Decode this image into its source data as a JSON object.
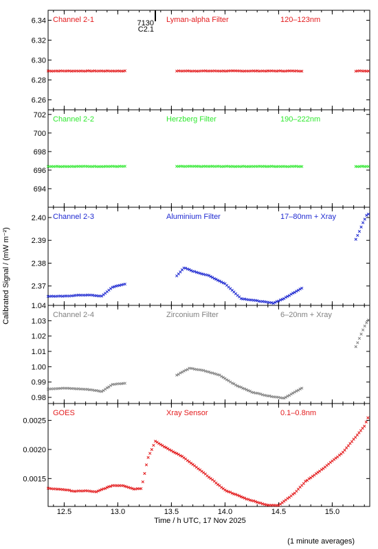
{
  "chart_data": {
    "type": "scatter",
    "xlabel": "Time / h UTC, 17 Nov 2025",
    "ylabel": "Calibrated Signal / (mW m⁻²)",
    "footnote": "(1 minute averages)",
    "xlim": [
      12.35,
      15.35
    ],
    "xticks": [
      "12.5",
      "13.0",
      "13.5",
      "14.0",
      "14.5",
      "15.0"
    ],
    "event_marker": {
      "x": 13.35,
      "labels": [
        "7130",
        "C2.1"
      ]
    },
    "panels": [
      {
        "name": "Channel 2-1",
        "filter": "Lyman-alpha Filter",
        "band": "120–123nm",
        "color": "#e31a1c",
        "ylim": [
          6.25,
          6.35
        ],
        "yticks": [
          "6.26",
          "6.28",
          "6.30",
          "6.32",
          "6.34"
        ],
        "segments": [
          {
            "x": [
              12.35,
              13.08
            ],
            "y": [
              6.289,
              6.289
            ]
          },
          {
            "x": [
              13.55,
              14.73
            ],
            "y": [
              6.289,
              6.289
            ]
          },
          {
            "x": [
              15.22,
              15.35
            ],
            "y": [
              6.289,
              6.289
            ]
          }
        ]
      },
      {
        "name": "Channel 2-2",
        "filter": "Herzberg Filter",
        "band": "190–222nm",
        "color": "#2ee82e",
        "ylim": [
          692.0,
          702.5
        ],
        "yticks": [
          "694",
          "696",
          "698",
          "700",
          "702"
        ],
        "segments": [
          {
            "x": [
              12.35,
              13.08
            ],
            "y": [
              696.4,
              696.4
            ]
          },
          {
            "x": [
              13.55,
              14.73
            ],
            "y": [
              696.4,
              696.4
            ]
          },
          {
            "x": [
              15.22,
              15.35
            ],
            "y": [
              696.4,
              696.4
            ]
          }
        ]
      },
      {
        "name": "Channel 2-3",
        "filter": "Aluminium Filter",
        "band": "17–80nm + Xray",
        "color": "#1f2ad1",
        "ylim": [
          2.3615,
          2.4045
        ],
        "yticks": [
          "2.37",
          "2.38",
          "2.39",
          "2.40"
        ],
        "segments": [
          {
            "x": [
              12.35,
              12.5,
              12.65,
              12.75,
              12.85,
              12.95,
              13.08
            ],
            "y": [
              2.3655,
              2.3655,
              2.366,
              2.366,
              2.3655,
              2.3695,
              2.371
            ]
          },
          {
            "x": [
              13.55,
              13.62,
              13.7,
              13.85,
              14.0,
              14.15,
              14.3,
              14.45,
              14.55,
              14.73
            ],
            "y": [
              2.3745,
              2.378,
              2.3765,
              2.3745,
              2.371,
              2.3645,
              2.3635,
              2.3625,
              2.3645,
              2.3695
            ]
          },
          {
            "x": [
              15.22,
              15.25,
              15.28,
              15.3,
              15.32,
              15.35
            ],
            "y": [
              2.3905,
              2.3935,
              2.397,
              2.399,
              2.401,
              2.402
            ]
          }
        ]
      },
      {
        "name": "Channel 2-4",
        "filter": "Zirconium Filter",
        "band": "6–20nm + Xray",
        "color": "#808080",
        "ylim": [
          0.976,
          1.04
        ],
        "yticks": [
          "0.98",
          "0.99",
          "1.00",
          "1.01",
          "1.02",
          "1.03",
          "1.04"
        ],
        "segments": [
          {
            "x": [
              12.35,
              12.5,
              12.65,
              12.75,
              12.85,
              12.95,
              13.08
            ],
            "y": [
              0.9855,
              0.986,
              0.9855,
              0.985,
              0.9838,
              0.9885,
              0.9893
            ]
          },
          {
            "x": [
              13.55,
              13.6,
              13.67,
              13.8,
              13.95,
              14.1,
              14.25,
              14.4,
              14.55,
              14.73
            ],
            "y": [
              0.9945,
              0.9965,
              0.999,
              0.9975,
              0.9945,
              0.988,
              0.9835,
              0.981,
              0.9795,
              0.9865
            ]
          },
          {
            "x": [
              15.22,
              15.25,
              15.28,
              15.3,
              15.33,
              15.35
            ],
            "y": [
              1.013,
              1.018,
              1.023,
              1.026,
              1.03,
              1.031
            ]
          }
        ]
      },
      {
        "name": "GOES",
        "filter": "Xray Sensor",
        "band": "0.1–0.8nm",
        "color": "#e31a1c",
        "ylim": [
          0.00102,
          0.00279
        ],
        "yticks": [
          "0.0015",
          "0.0020",
          "0.0025"
        ],
        "segments": [
          {
            "x": [
              12.35,
              12.5,
              12.6,
              12.7,
              12.8,
              12.85,
              12.95,
              13.05,
              13.15,
              13.22,
              13.28,
              13.35,
              13.45,
              13.6,
              13.8,
              14.0,
              14.2,
              14.4,
              14.5,
              14.65,
              14.75,
              14.9,
              15.1,
              15.3,
              15.35
            ],
            "y": [
              0.00133,
              0.00131,
              0.00128,
              0.00129,
              0.00127,
              0.00131,
              0.00138,
              0.00138,
              0.00132,
              0.00133,
              0.00185,
              0.00214,
              0.00203,
              0.00188,
              0.0016,
              0.0013,
              0.00115,
              0.00104,
              0.00104,
              0.00125,
              0.00145,
              0.00165,
              0.00195,
              0.0024,
              0.00262
            ]
          }
        ]
      }
    ]
  }
}
